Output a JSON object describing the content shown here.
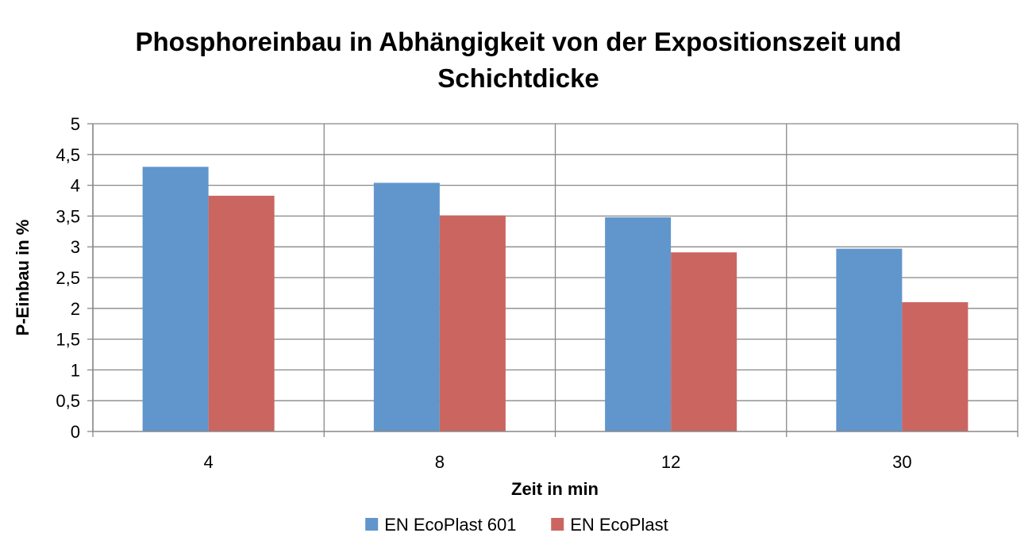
{
  "chart_data": {
    "type": "bar",
    "title": [
      "Phosphoreinbau in Abhängigkeit von der Expositionszeit und",
      "Schichtdicke"
    ],
    "xlabel": "Zeit in min",
    "ylabel": "P-Einbau in %",
    "categories": [
      "4",
      "8",
      "12",
      "30"
    ],
    "series": [
      {
        "name": "EN EcoPlast 601",
        "color": "#6096CB",
        "values": [
          4.3,
          4.04,
          3.48,
          2.97
        ]
      },
      {
        "name": "EN EcoPlast",
        "color": "#CB6560",
        "values": [
          3.83,
          3.51,
          2.91,
          2.1
        ]
      }
    ],
    "ylim": [
      0,
      5
    ],
    "yticks": [
      "0",
      "0,5",
      "1",
      "1,5",
      "2",
      "2,5",
      "3",
      "3,5",
      "4",
      "4,5",
      "5"
    ],
    "grid": true,
    "legend": "bottom"
  }
}
